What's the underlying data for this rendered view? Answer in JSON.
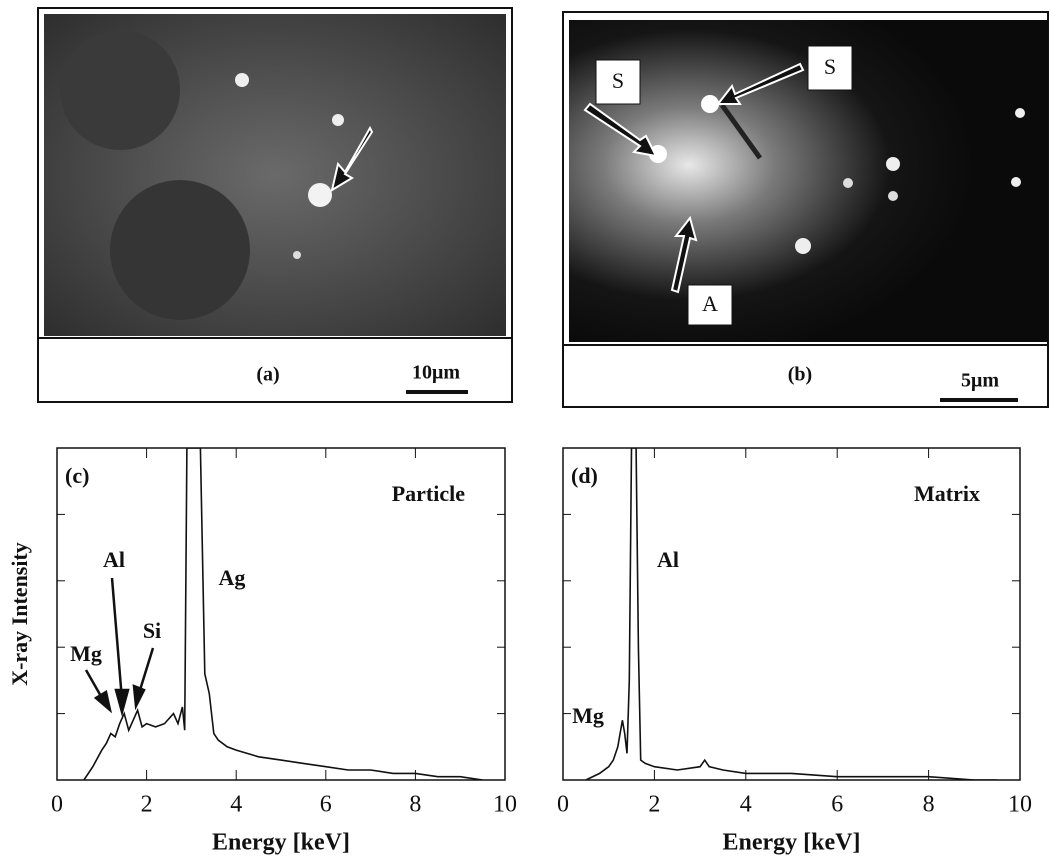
{
  "figures": [
    {
      "label": "(a)",
      "scale": "10μm"
    },
    {
      "label": "(b)",
      "scale": "5μm",
      "markers": [
        "S",
        "S",
        "A"
      ]
    }
  ],
  "chart_data": [
    {
      "type": "line",
      "label": "(c)",
      "title": "Particle",
      "ylabel": "X-ray Intensity",
      "xlabel": "Energy [keV]",
      "annotations": [
        "Ag",
        "Al",
        "Si",
        "Mg"
      ],
      "x": [
        0.6,
        0.8,
        1.0,
        1.1,
        1.2,
        1.3,
        1.4,
        1.5,
        1.6,
        1.7,
        1.8,
        1.9,
        2.0,
        2.2,
        2.4,
        2.6,
        2.7,
        2.8,
        2.85,
        2.9,
        3.0,
        3.1,
        3.2,
        3.3,
        3.4,
        3.5,
        3.6,
        3.8,
        4.0,
        4.5,
        5.0,
        5.5,
        6.0,
        6.5,
        7.0,
        7.5,
        8.0,
        8.5,
        9.0,
        9.5
      ],
      "values": [
        0,
        4,
        9,
        11,
        14,
        13,
        17,
        20,
        15,
        18,
        21,
        16,
        17,
        16,
        17,
        20,
        17,
        22,
        15,
        100,
        100,
        100,
        100,
        32,
        26,
        14,
        12,
        10,
        9,
        7,
        6,
        5,
        4,
        3,
        3,
        2,
        2,
        1,
        1,
        0
      ],
      "color": "#111111",
      "xlim": [
        0,
        10
      ],
      "ylim": [
        0,
        100
      ],
      "xticks": [
        0,
        2,
        4,
        6,
        8,
        10
      ]
    },
    {
      "type": "line",
      "label": "(d)",
      "title": "Matrix",
      "xlabel": "Energy [keV]",
      "annotations": [
        "Al",
        "Mg"
      ],
      "x": [
        0.5,
        0.8,
        1.0,
        1.1,
        1.2,
        1.3,
        1.35,
        1.4,
        1.45,
        1.5,
        1.55,
        1.6,
        1.65,
        1.7,
        1.8,
        2.0,
        2.5,
        3.0,
        3.1,
        3.2,
        3.5,
        4.0,
        5.0,
        6.0,
        7.0,
        8.0,
        9.0,
        9.5
      ],
      "values": [
        0,
        2,
        4,
        6,
        10,
        18,
        14,
        8,
        30,
        100,
        100,
        100,
        40,
        6,
        5,
        4,
        3,
        4,
        6,
        4,
        3,
        2,
        2,
        1,
        1,
        1,
        0,
        0
      ],
      "color": "#111111",
      "xlim": [
        0,
        10
      ],
      "ylim": [
        0,
        100
      ],
      "xticks": [
        0,
        2,
        4,
        6,
        8,
        10
      ]
    }
  ]
}
